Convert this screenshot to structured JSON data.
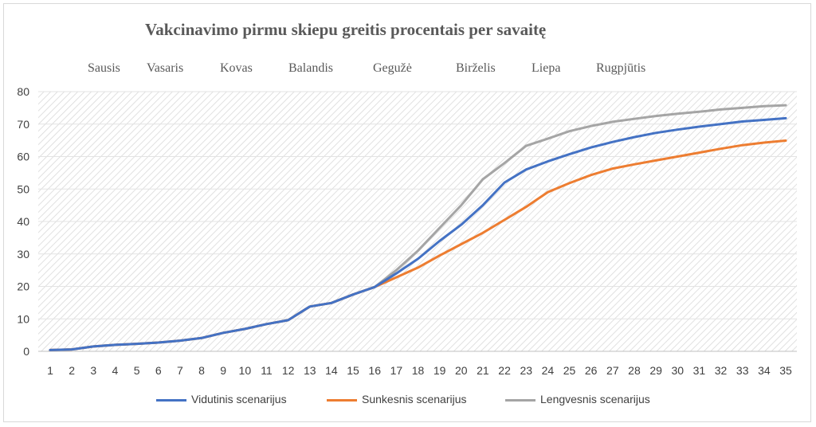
{
  "chart_data": {
    "type": "line",
    "title": "Vakcinavimo pirmu skiepu greitis procentais per savaitę",
    "months": [
      "Sausis",
      "Vasaris",
      "Kovas",
      "Balandis",
      "Gegužė",
      "Birželis",
      "Liepa",
      "Rugpjūtis"
    ],
    "x": [
      1,
      2,
      3,
      4,
      5,
      6,
      7,
      8,
      9,
      10,
      11,
      12,
      13,
      14,
      15,
      16,
      17,
      18,
      19,
      20,
      21,
      22,
      23,
      24,
      25,
      26,
      27,
      28,
      29,
      30,
      31,
      32,
      33,
      34,
      35
    ],
    "ylim": [
      0,
      80
    ],
    "yticks": [
      0,
      10,
      20,
      30,
      40,
      50,
      60,
      70,
      80
    ],
    "grid": true,
    "legend_position": "bottom",
    "series": [
      {
        "name": "Vidutinis scenarijus",
        "color": "#4472c4",
        "values": [
          0.4,
          0.6,
          1.5,
          2.0,
          2.3,
          2.7,
          3.3,
          4.1,
          5.7,
          6.9,
          8.4,
          9.6,
          13.8,
          14.9,
          17.5,
          19.8,
          24.0,
          28.5,
          34.0,
          39.0,
          45.0,
          52.0,
          56.0,
          58.5,
          60.7,
          62.8,
          64.5,
          66.0,
          67.3,
          68.3,
          69.2,
          70.0,
          70.8,
          71.3,
          71.8
        ]
      },
      {
        "name": "Sunkesnis scenarijus",
        "color": "#ed7d31",
        "values": [
          0.4,
          0.6,
          1.5,
          2.0,
          2.3,
          2.7,
          3.3,
          4.1,
          5.7,
          6.9,
          8.4,
          9.6,
          13.8,
          14.9,
          17.5,
          19.8,
          22.8,
          25.8,
          29.5,
          33.0,
          36.5,
          40.5,
          44.5,
          49.0,
          51.8,
          54.3,
          56.3,
          57.6,
          58.8,
          60.0,
          61.2,
          62.4,
          63.5,
          64.3,
          64.9
        ]
      },
      {
        "name": "Lengvesnis scenarijus",
        "color": "#a5a5a5",
        "values": [
          0.4,
          0.6,
          1.5,
          2.0,
          2.3,
          2.7,
          3.3,
          4.1,
          5.7,
          6.9,
          8.4,
          9.6,
          13.8,
          14.9,
          17.5,
          19.8,
          25.0,
          31.0,
          38.0,
          45.0,
          53.0,
          58.0,
          63.3,
          65.5,
          67.8,
          69.4,
          70.7,
          71.6,
          72.5,
          73.2,
          73.8,
          74.5,
          75.0,
          75.5,
          75.8
        ]
      }
    ]
  }
}
